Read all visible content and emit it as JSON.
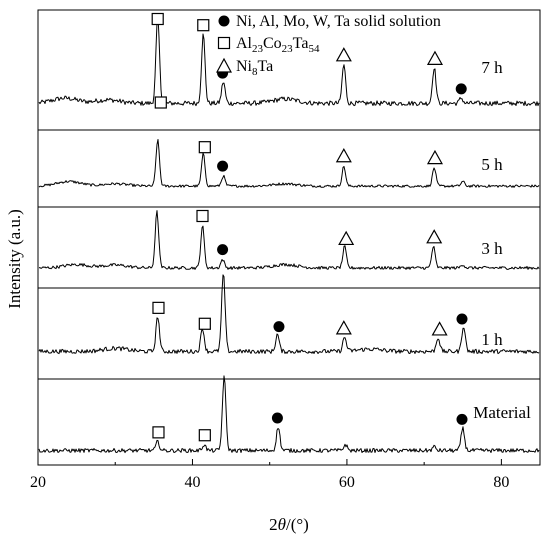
{
  "chart_data": {
    "type": "line",
    "title": "",
    "xlabel_pre": "2",
    "xlabel_theta": "θ",
    "xlabel_post": "/(°)",
    "ylabel": "Intensity (a.u.)",
    "xlim": [
      20,
      85
    ],
    "xticks": [
      20,
      40,
      60,
      80
    ],
    "legend": {
      "placement": "top-right",
      "entries": [
        {
          "marker": "circle",
          "text": "Ni, Al, Mo, W, Ta solid solution"
        },
        {
          "marker": "square",
          "text_parts": [
            [
              "Al",
              false
            ],
            [
              "23",
              true
            ],
            [
              "Co",
              false
            ],
            [
              "23",
              true
            ],
            [
              "Ta",
              false
            ],
            [
              "54",
              true
            ]
          ]
        },
        {
          "marker": "triangle",
          "text_parts": [
            [
              "Ni",
              false
            ],
            [
              "8",
              true
            ],
            [
              "Ta",
              false
            ]
          ]
        }
      ]
    },
    "series": [
      {
        "name": "7 h",
        "peaks": [
          [
            35.5,
            1.0
          ],
          [
            41.4,
            0.8
          ],
          [
            44.0,
            0.25
          ],
          [
            59.6,
            0.45
          ],
          [
            71.3,
            0.42
          ],
          [
            74.8,
            0.06
          ]
        ],
        "broad": [
          [
            23.5,
            0.06
          ],
          [
            29,
            0.04
          ],
          [
            52,
            0.05
          ]
        ],
        "markers": [
          {
            "type": "square",
            "x": 35.5
          },
          {
            "type": "square",
            "x": 41.4
          },
          {
            "type": "circle",
            "x": 43.9
          },
          {
            "type": "triangle",
            "x": 59.6
          },
          {
            "type": "triangle",
            "x": 71.4
          },
          {
            "type": "circle",
            "x": 74.8
          }
        ]
      },
      {
        "name": "5 h",
        "peaks": [
          [
            35.5,
            1.0
          ],
          [
            41.4,
            0.7
          ],
          [
            44.0,
            0.22
          ],
          [
            59.6,
            0.43
          ],
          [
            71.3,
            0.4
          ],
          [
            75.0,
            0.1
          ]
        ],
        "broad": [
          [
            24,
            0.1
          ],
          [
            30,
            0.05
          ],
          [
            52,
            0.05
          ]
        ],
        "markers": [
          {
            "type": "square",
            "x": 41.6
          },
          {
            "type": "circle",
            "x": 43.9
          },
          {
            "type": "triangle",
            "x": 59.6
          },
          {
            "type": "triangle",
            "x": 71.4
          }
        ]
      },
      {
        "name": "3 h",
        "peaks": [
          [
            35.4,
            1.0
          ],
          [
            41.3,
            0.75
          ],
          [
            43.9,
            0.15
          ],
          [
            59.7,
            0.38
          ],
          [
            71.2,
            0.38
          ],
          [
            75.0,
            0.06
          ]
        ],
        "broad": [
          [
            25,
            0.06
          ],
          [
            30,
            0.05
          ],
          [
            52,
            0.06
          ]
        ],
        "markers": [
          {
            "type": "square",
            "x": 41.3
          },
          {
            "type": "circle",
            "x": 43.9
          },
          {
            "type": "triangle",
            "x": 59.9
          },
          {
            "type": "triangle",
            "x": 71.3
          }
        ]
      },
      {
        "name": "1 h",
        "peaks": [
          [
            35.5,
            0.45
          ],
          [
            41.3,
            0.3
          ],
          [
            44.0,
            1.0
          ],
          [
            51.0,
            0.22
          ],
          [
            59.7,
            0.18
          ],
          [
            71.8,
            0.18
          ],
          [
            75.1,
            0.33
          ]
        ],
        "broad": [
          [
            30,
            0.04
          ],
          [
            63,
            0.03
          ]
        ],
        "markers": [
          {
            "type": "square",
            "x": 35.6
          },
          {
            "type": "square",
            "x": 41.6
          },
          {
            "type": "circle",
            "x": 51.2
          },
          {
            "type": "triangle",
            "x": 59.6
          },
          {
            "type": "triangle",
            "x": 72.0
          },
          {
            "type": "circle",
            "x": 74.9
          }
        ]
      },
      {
        "name": "Material",
        "peaks": [
          [
            35.5,
            0.12
          ],
          [
            41.5,
            0.08
          ],
          [
            44.1,
            1.0
          ],
          [
            51.1,
            0.32
          ],
          [
            59.8,
            0.08
          ],
          [
            71.3,
            0.05
          ],
          [
            75.0,
            0.3
          ]
        ],
        "broad": [],
        "markers": [
          {
            "type": "square",
            "x": 35.6
          },
          {
            "type": "square",
            "x": 41.6
          },
          {
            "type": "circle",
            "x": 51.0
          },
          {
            "type": "circle",
            "x": 74.9
          }
        ]
      }
    ]
  }
}
